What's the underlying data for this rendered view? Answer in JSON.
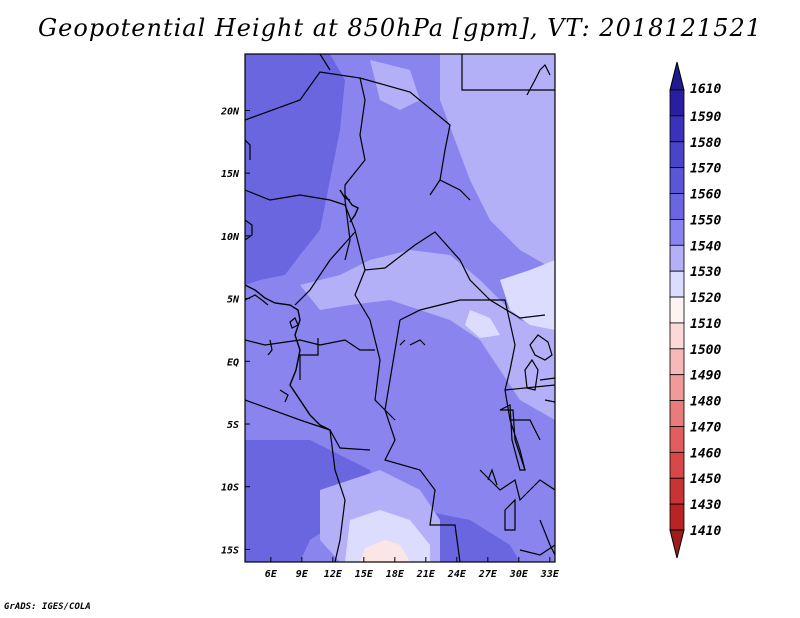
{
  "title": "Geopotential Height at 850hPa [gpm], VT: 2018121521",
  "footer": "GrADS: IGES/COLA",
  "map": {
    "lon_ticks": [
      "6E",
      "9E",
      "12E",
      "15E",
      "18E",
      "21E",
      "24E",
      "27E",
      "30E",
      "33E"
    ],
    "lat_ticks": [
      "20N",
      "15N",
      "10N",
      "5N",
      "EQ",
      "5S",
      "10S",
      "15S"
    ],
    "lon_range": [
      3.5,
      33.5
    ],
    "lat_range": [
      -16,
      24.5
    ],
    "field_colors": {
      "c1550": "#6a66e0",
      "c1540": "#8a85ee",
      "c1530": "#b4b0f8",
      "c1520": "#dcdcff",
      "c1510": "#fbe6e6"
    }
  },
  "colorbar": {
    "levels": [
      "1610",
      "1590",
      "1580",
      "1570",
      "1560",
      "1550",
      "1540",
      "1530",
      "1520",
      "1510",
      "1500",
      "1490",
      "1480",
      "1470",
      "1460",
      "1450",
      "1430",
      "1410"
    ],
    "colors": [
      "#2a1ea0",
      "#3a32b8",
      "#4a44c8",
      "#5a56d6",
      "#6a66e0",
      "#8a85ee",
      "#b4b0f8",
      "#dcdcff",
      "#fef3f3",
      "#fcd8d8",
      "#f6b8b8",
      "#f09a9a",
      "#e87c7c",
      "#e05e5e",
      "#d84848",
      "#c83434",
      "#b82424"
    ],
    "top_arrow_color": "#221a90",
    "bottom_arrow_color": "#a01c1c"
  }
}
